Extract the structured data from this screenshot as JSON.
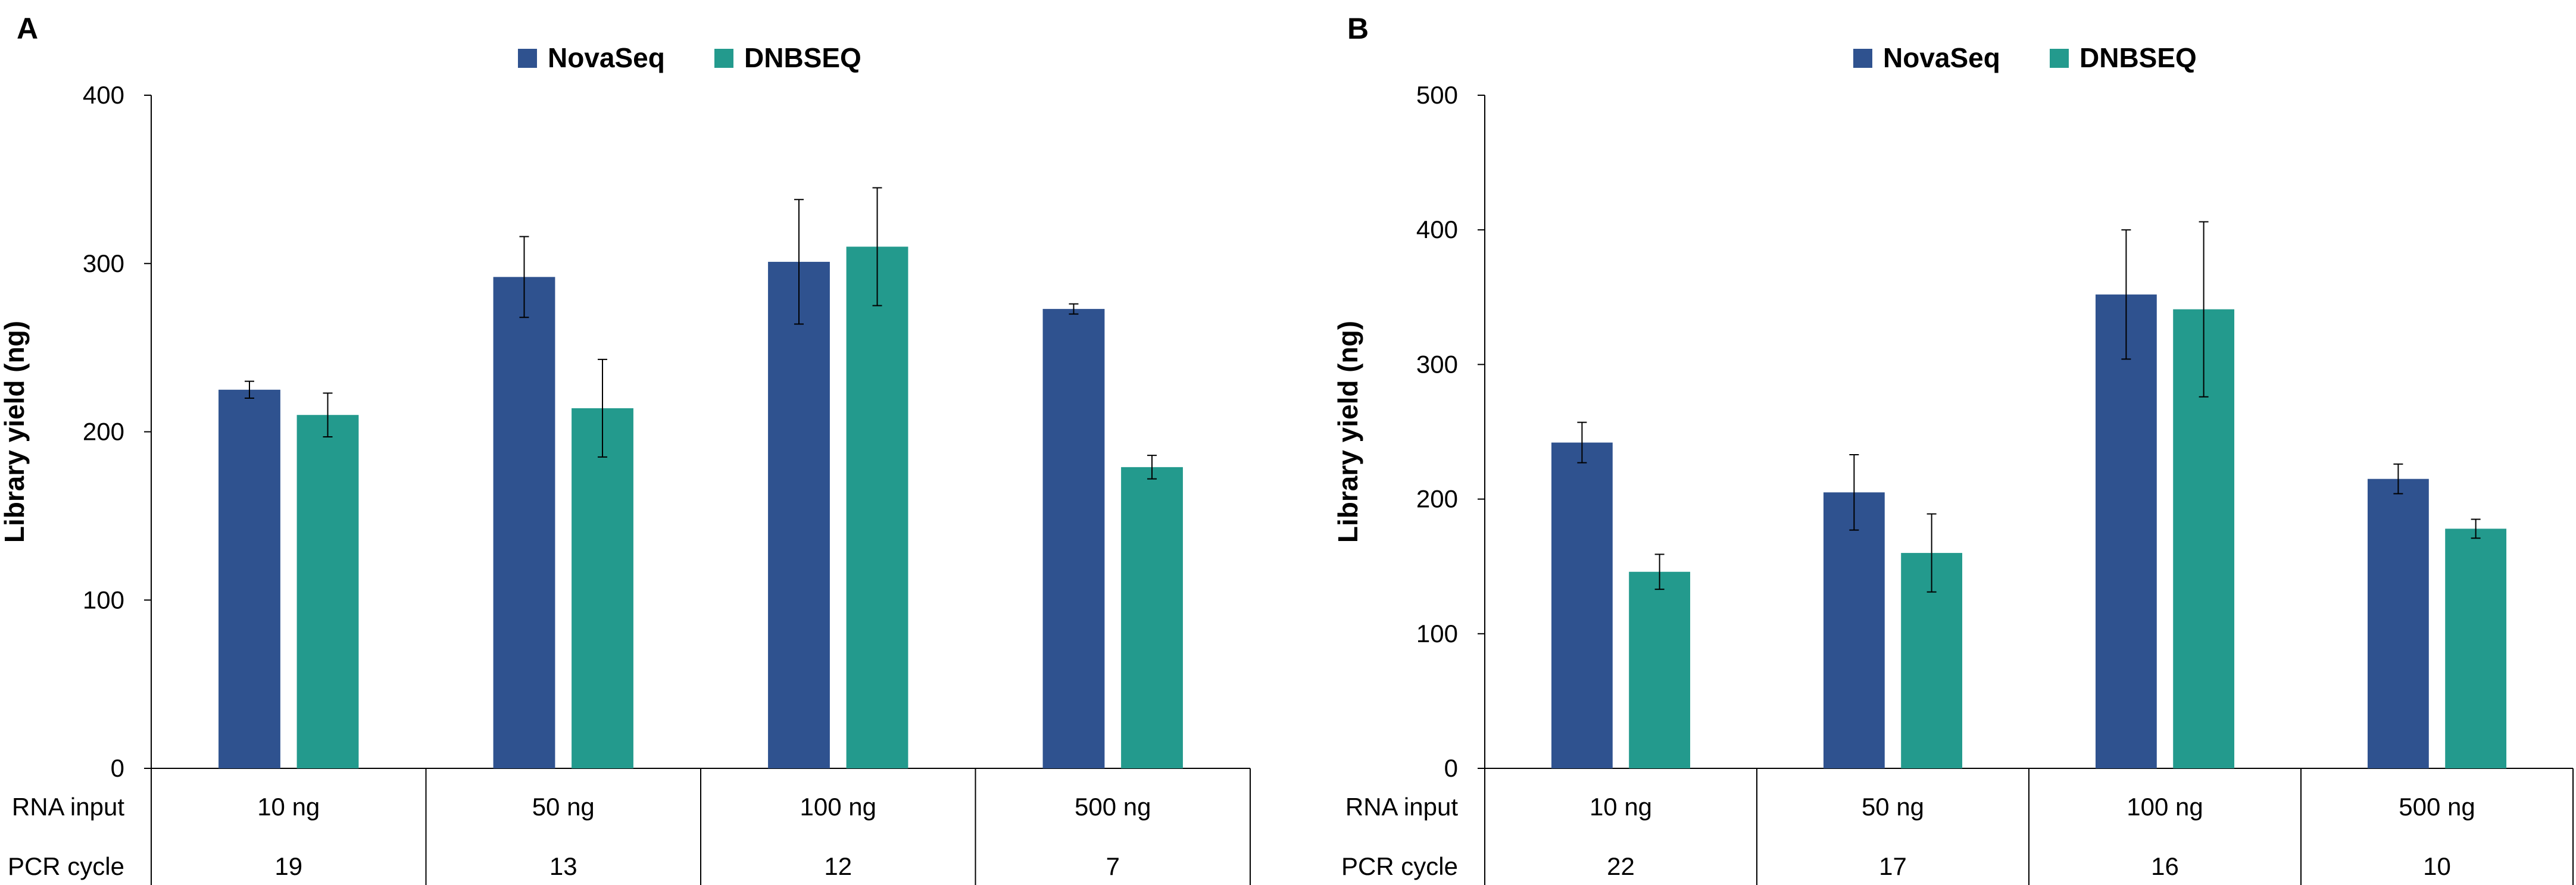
{
  "colors": {
    "NovaSeq": "#2F528F",
    "DNBSEQ": "#239A8D"
  },
  "chart_data": [
    {
      "type": "bar",
      "panel_label": "A",
      "ylabel": "Library yield (ng)",
      "ylim": [
        0,
        400
      ],
      "yticks": [
        0,
        100,
        200,
        300,
        400
      ],
      "legend_position": "top-center",
      "row_headers": [
        "RNA input",
        "PCR cycle"
      ],
      "categories": [
        "10 ng",
        "50 ng",
        "100 ng",
        "500 ng"
      ],
      "pcr_cycles": [
        "19",
        "13",
        "12",
        "7"
      ],
      "series": [
        {
          "name": "NovaSeq",
          "values": [
            225,
            292,
            301,
            273
          ],
          "errors": [
            5,
            24,
            37,
            3
          ]
        },
        {
          "name": "DNBSEQ",
          "values": [
            210,
            214,
            310,
            179
          ],
          "errors": [
            13,
            29,
            35,
            7
          ]
        }
      ]
    },
    {
      "type": "bar",
      "panel_label": "B",
      "ylabel": "Library yield (ng)",
      "ylim": [
        0,
        500
      ],
      "yticks": [
        0,
        100,
        200,
        300,
        400,
        500
      ],
      "legend_position": "top-center",
      "row_headers": [
        "RNA input",
        "PCR cycle"
      ],
      "categories": [
        "10 ng",
        "50 ng",
        "100 ng",
        "500 ng"
      ],
      "pcr_cycles": [
        "22",
        "17",
        "16",
        "10"
      ],
      "series": [
        {
          "name": "NovaSeq",
          "values": [
            242,
            205,
            352,
            215
          ],
          "errors": [
            15,
            28,
            48,
            11
          ]
        },
        {
          "name": "DNBSEQ",
          "values": [
            146,
            160,
            341,
            178
          ],
          "errors": [
            13,
            29,
            65,
            7
          ]
        }
      ]
    }
  ]
}
